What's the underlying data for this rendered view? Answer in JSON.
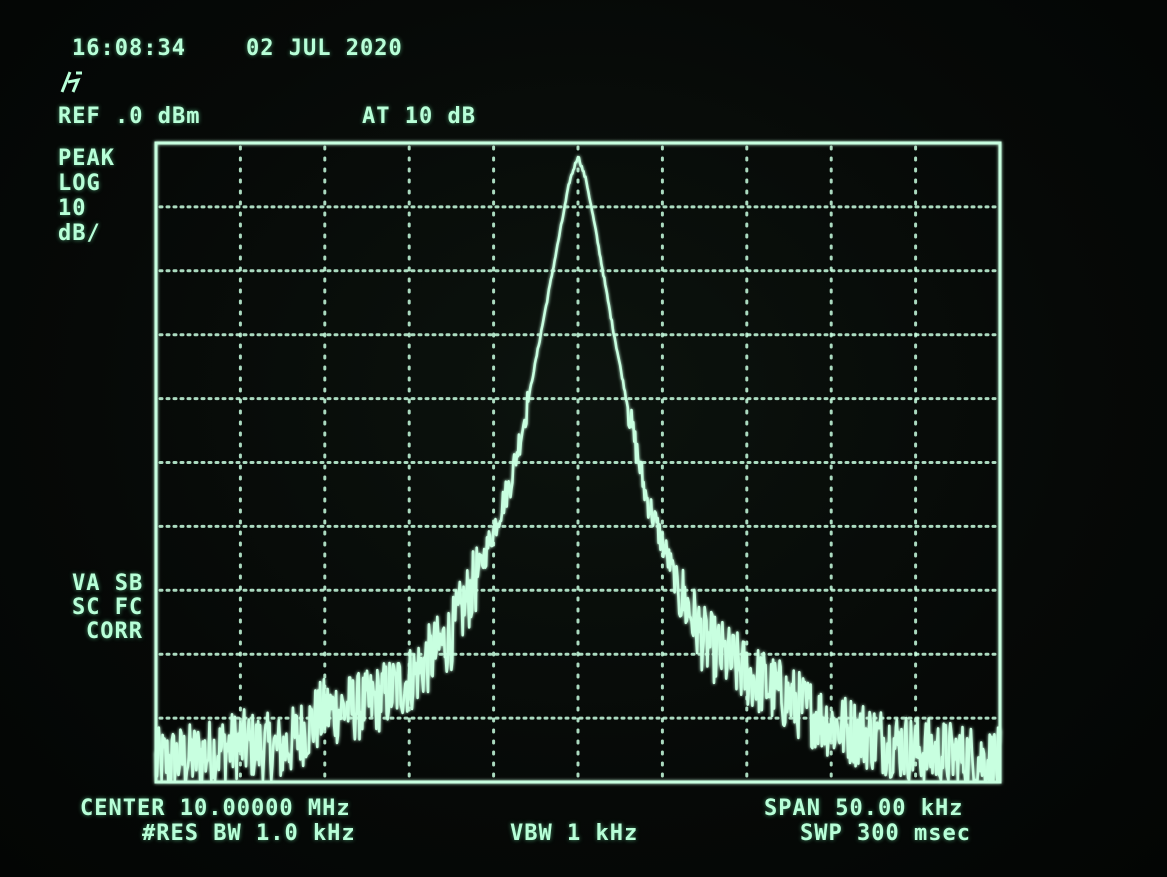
{
  "header": {
    "time": "16:08:34",
    "date": "02 JUL 2020",
    "logo": "hp-logo",
    "ref_level": "REF .0 dBm",
    "attenuation": "AT 10 dB"
  },
  "left_panel": {
    "detector": "PEAK",
    "scale_1": "LOG",
    "scale_2": "10",
    "scale_3": "dB/",
    "flags_1": "VA SB",
    "flags_2": "SC FC",
    "flags_3": "CORR"
  },
  "footer": {
    "center": "CENTER 10.00000 MHz",
    "rbw": "#RES BW 1.0 kHz",
    "vbw": "VBW 1 kHz",
    "span": "SPAN 50.00 kHz",
    "sweep": "SWP 300 msec"
  },
  "colors": {
    "trace": "#c8ffe0",
    "graticule": "#c8ffe0",
    "text": "#b8ffd8"
  },
  "chart_data": {
    "type": "line",
    "title": "",
    "xlabel": "",
    "ylabel": "",
    "x_unit": "MHz",
    "y_unit": "dBm",
    "xlim": [
      9.975,
      10.025
    ],
    "ylim": [
      -100,
      0
    ],
    "x_divisions": 10,
    "y_divisions": 10,
    "grid": true,
    "series": [
      {
        "x": [
          9.975,
          9.9775,
          9.98,
          9.9825,
          9.985,
          9.9875,
          9.99,
          9.9925,
          9.994,
          9.996,
          9.997,
          9.998,
          9.999,
          9.9995,
          10.0,
          10.0005,
          10.001,
          10.002,
          10.003,
          10.004,
          10.006,
          10.0075,
          10.01,
          10.0125,
          10.015,
          10.0175,
          10.02,
          10.0225,
          10.025
        ],
        "y": [
          -97,
          -96,
          -94,
          -95,
          -89,
          -88,
          -84,
          -77,
          -68,
          -53,
          -41,
          -27,
          -13,
          -6,
          -2,
          -6,
          -13,
          -28,
          -42,
          -55,
          -70,
          -78,
          -83,
          -87,
          -91,
          -93,
          -95,
          -96,
          -97
        ]
      }
    ]
  }
}
